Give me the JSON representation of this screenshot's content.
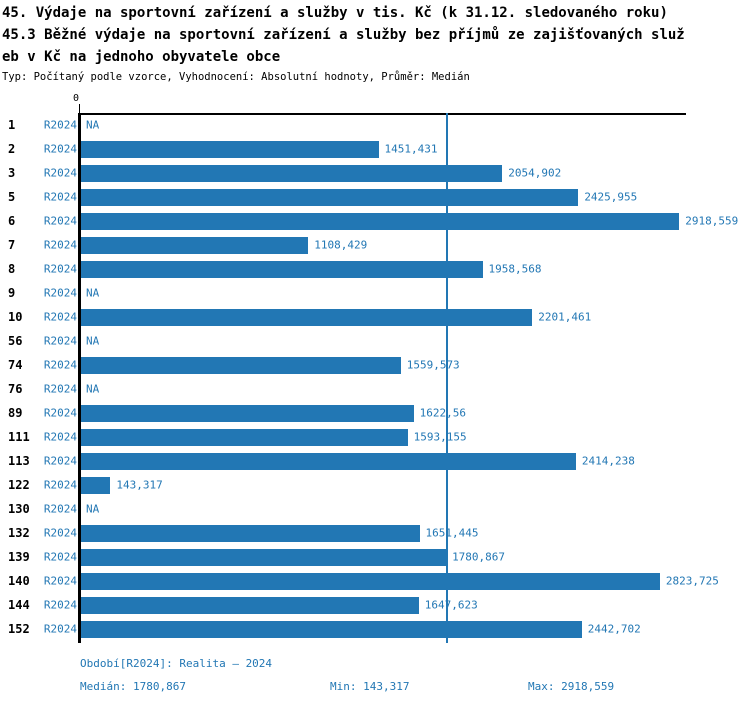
{
  "title": {
    "line1": "45. Výdaje na sportovní zařízení a služby v tis. Kč (k 31.12. sledovaného roku)",
    "line2": "45.3 Běžné výdaje na sportovní zařízení a služby bez příjmů ze zajišťovaných služ",
    "line3": "eb v Kč na jednoho obyvatele obce",
    "subtitle": "Typ: Počítaný podle vzorce, Vyhodnocení: Absolutní hodnoty, Průměr: Medián"
  },
  "colors": {
    "bar": "#2277B4",
    "blue_text": "#2277B4",
    "axis": "#000000"
  },
  "chart_data": {
    "type": "bar",
    "orientation": "horizontal",
    "axis_zero_label": "0",
    "xlim": [
      0,
      2950
    ],
    "grid": false,
    "median_line_value": 1780.867,
    "null_label": "NA",
    "categories": [
      "1",
      "2",
      "3",
      "5",
      "6",
      "7",
      "8",
      "9",
      "10",
      "56",
      "74",
      "76",
      "89",
      "111",
      "113",
      "122",
      "130",
      "132",
      "139",
      "140",
      "144",
      "152"
    ],
    "series": [
      {
        "name": "R2024",
        "values": [
          null,
          1451.431,
          2054.902,
          2425.955,
          2918.559,
          1108.429,
          1958.568,
          null,
          2201.461,
          null,
          1559.573,
          null,
          1622.56,
          1593.155,
          2414.238,
          143.317,
          null,
          1651.445,
          1780.867,
          2823.725,
          1647.623,
          2442.702
        ],
        "labels": [
          "NA",
          "1451,431",
          "2054,902",
          "2425,955",
          "2918,559",
          "1108,429",
          "1958,568",
          "NA",
          "2201,461",
          "NA",
          "1559,573",
          "NA",
          "1622,56",
          "1593,155",
          "2414,238",
          "143,317",
          "NA",
          "1651,445",
          "1780,867",
          "2823,725",
          "1647,623",
          "2442,702"
        ]
      }
    ]
  },
  "footer": {
    "period": "Období[R2024]: Realita – 2024",
    "median": "Medián: 1780,867",
    "min": "Min: 143,317",
    "max": "Max: 2918,559"
  }
}
